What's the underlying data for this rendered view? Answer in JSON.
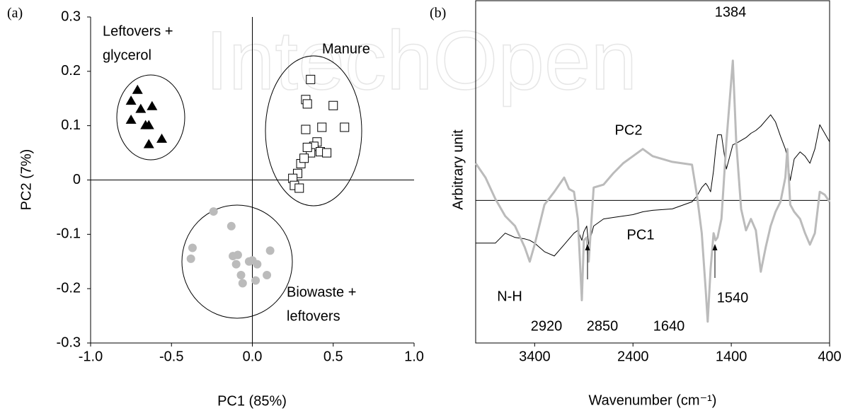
{
  "watermark": "IntechOpen",
  "chart_data": [
    {
      "type": "scatter",
      "panel_label": "(a)",
      "x_label": "PC1 (85%)",
      "y_label": "PC2 (7%)",
      "xlim": [
        -1,
        1
      ],
      "ylim": [
        -0.3,
        0.3
      ],
      "xticks": [
        {
          "value": -1,
          "label": "-1.0"
        },
        {
          "value": -0.5,
          "label": "-0.5"
        },
        {
          "value": 0,
          "label": "0.0"
        },
        {
          "value": 0.5,
          "label": "0.5"
        },
        {
          "value": 1,
          "label": "1.0"
        }
      ],
      "yticks": [
        -0.3,
        -0.2,
        -0.1,
        0,
        0.1,
        0.2,
        0.3
      ],
      "ref_lines": {
        "x": 0,
        "y": 0
      },
      "annotations": [
        [
          "Leftovers +",
          "glycerol"
        ],
        [
          "Manure"
        ],
        [
          "Biowaste +",
          "leftovers"
        ]
      ],
      "series": [
        {
          "marker": "triangle",
          "color": "#000000",
          "x": [
            -0.71,
            -0.75,
            -0.69,
            -0.62,
            -0.75,
            -0.66,
            -0.64,
            -0.56,
            -0.64
          ],
          "y": [
            0.165,
            0.145,
            0.13,
            0.135,
            0.11,
            0.1,
            0.1,
            0.075,
            0.065
          ]
        },
        {
          "marker": "square",
          "color": "#000000",
          "x": [
            0.36,
            0.33,
            0.34,
            0.5,
            0.33,
            0.43,
            0.57,
            0.4,
            0.38,
            0.36,
            0.42,
            0.46,
            0.3,
            0.32,
            0.28,
            0.25,
            0.26,
            0.29,
            0.34
          ],
          "y": [
            0.185,
            0.148,
            0.14,
            0.137,
            0.093,
            0.097,
            0.097,
            0.07,
            0.062,
            0.05,
            0.052,
            0.05,
            0.03,
            0.04,
            0.012,
            0.003,
            -0.01,
            -0.015,
            0.06
          ]
        },
        {
          "marker": "circle",
          "color": "#bbbbbb",
          "x": [
            -0.24,
            -0.37,
            -0.38,
            -0.13,
            -0.09,
            -0.12,
            -0.1,
            -0.07,
            -0.06,
            -0.02,
            0.0,
            0.03,
            0.02,
            0.11,
            0.09
          ],
          "y": [
            -0.058,
            -0.125,
            -0.145,
            -0.085,
            -0.138,
            -0.14,
            -0.155,
            -0.175,
            -0.19,
            -0.15,
            -0.148,
            -0.155,
            -0.185,
            -0.13,
            -0.175
          ]
        }
      ]
    },
    {
      "type": "line",
      "panel_label": "(b)",
      "x_label": "Wavenumber (cm⁻¹)",
      "y_label": "Arbitrary unit",
      "xlim": [
        4000,
        400
      ],
      "ylim": [
        -1,
        1.4
      ],
      "xticks": [
        3400,
        2400,
        1400,
        400
      ],
      "ref_lines": {
        "y": 0
      },
      "annotations": [
        "1384",
        "PC2",
        "PC1",
        "N-H",
        "2920",
        "2850",
        "1640",
        "1540"
      ],
      "x": [
        4000,
        3900,
        3800,
        3700,
        3600,
        3500,
        3450,
        3400,
        3300,
        3200,
        3100,
        3050,
        3000,
        2960,
        2920,
        2900,
        2870,
        2850,
        2800,
        2700,
        2600,
        2500,
        2400,
        2300,
        2200,
        2000,
        1800,
        1750,
        1700,
        1660,
        1640,
        1610,
        1580,
        1560,
        1540,
        1500,
        1450,
        1384,
        1350,
        1300,
        1250,
        1200,
        1150,
        1100,
        1050,
        1000,
        950,
        900,
        850,
        830,
        800,
        760,
        700,
        650,
        600,
        550,
        500,
        450,
        400
      ],
      "series": [
        {
          "name": "PC1",
          "color": "#000000",
          "width": 1,
          "values": [
            -0.3,
            -0.3,
            -0.3,
            -0.23,
            -0.26,
            -0.27,
            -0.28,
            -0.3,
            -0.36,
            -0.39,
            -0.31,
            -0.27,
            -0.23,
            -0.21,
            -0.28,
            -0.22,
            -0.18,
            -0.31,
            -0.18,
            -0.13,
            -0.12,
            -0.11,
            -0.1,
            -0.08,
            -0.07,
            -0.06,
            -0.01,
            0.03,
            0.09,
            0.12,
            0.1,
            0.06,
            0.21,
            0.35,
            0.46,
            0.46,
            0.22,
            0.39,
            0.4,
            0.42,
            0.44,
            0.47,
            0.49,
            0.52,
            0.56,
            0.6,
            0.55,
            0.45,
            0.36,
            0.3,
            0.14,
            0.29,
            0.34,
            0.31,
            0.26,
            0.36,
            0.53,
            0.47,
            0.41
          ]
        },
        {
          "name": "PC2",
          "color": "#bbbbbb",
          "width": 3,
          "values": [
            0.26,
            0.16,
            0.01,
            -0.11,
            -0.18,
            -0.33,
            -0.43,
            -0.31,
            -0.03,
            0.06,
            0.16,
            0.08,
            0.06,
            -0.13,
            -0.7,
            -0.28,
            -0.26,
            -0.43,
            0.09,
            0.11,
            0.19,
            0.26,
            0.31,
            0.36,
            0.31,
            0.27,
            0.25,
            0.04,
            -0.23,
            -0.63,
            -0.85,
            -0.48,
            -0.23,
            -0.28,
            -0.26,
            -0.13,
            0.41,
            0.98,
            0.41,
            -0.06,
            -0.21,
            -0.13,
            -0.21,
            -0.5,
            -0.33,
            -0.18,
            -0.08,
            -0.01,
            0.16,
            0.36,
            -0.03,
            -0.08,
            -0.13,
            -0.23,
            -0.31,
            -0.23,
            0.06,
            0.04,
            -0.01
          ]
        }
      ]
    }
  ]
}
